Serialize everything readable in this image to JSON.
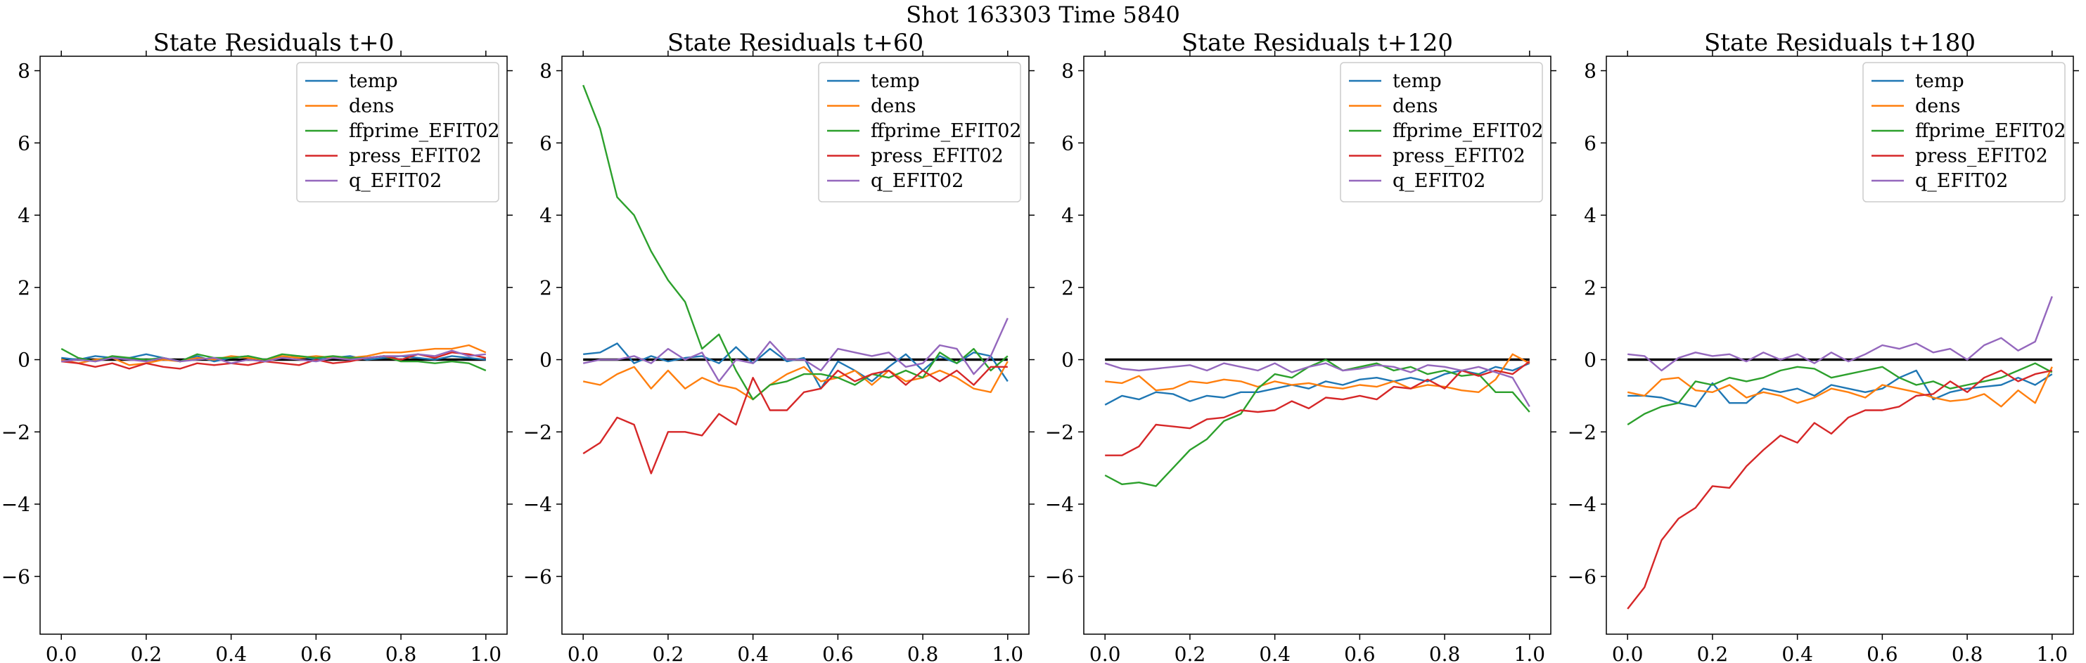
{
  "figure": {
    "suptitle": "Shot 163303   Time 5840"
  },
  "colors": {
    "temp": "#1f77b4",
    "dens": "#ff7f0e",
    "ffprime_EFIT02": "#2ca02c",
    "press_EFIT02": "#d62728",
    "q_EFIT02": "#9467bd",
    "zero_line": "#000000"
  },
  "chart_data": [
    {
      "type": "line",
      "title": "State Residuals t+0",
      "xlabel": "",
      "ylabel": "",
      "xlim": [
        -0.05,
        1.05
      ],
      "ylim": [
        -7.6,
        8.4
      ],
      "xticks": [
        0.0,
        0.2,
        0.4,
        0.6,
        0.8,
        1.0
      ],
      "xtick_labels": [
        "0.0",
        "0.2",
        "0.4",
        "0.6",
        "0.8",
        "1.0"
      ],
      "yticks": [
        -6,
        -4,
        -2,
        0,
        2,
        4,
        6,
        8
      ],
      "ytick_labels": [
        "−6",
        "−4",
        "−2",
        "0",
        "2",
        "4",
        "6",
        "8"
      ],
      "grid": false,
      "legend_position": "top-right",
      "zero_line": 0,
      "x": [
        0.0,
        0.04,
        0.08,
        0.12,
        0.16,
        0.2,
        0.24,
        0.28,
        0.32,
        0.36,
        0.4,
        0.44,
        0.48,
        0.52,
        0.56,
        0.6,
        0.64,
        0.68,
        0.72,
        0.76,
        0.8,
        0.84,
        0.88,
        0.92,
        0.96,
        1.0
      ],
      "series": [
        {
          "name": "temp",
          "values": [
            0.05,
            0.0,
            0.1,
            0.05,
            0.05,
            0.15,
            0.05,
            -0.05,
            0.1,
            -0.05,
            0.05,
            0.1,
            0.0,
            0.05,
            0.1,
            0.0,
            0.05,
            0.1,
            0.0,
            0.05,
            0.1,
            0.05,
            0.0,
            0.1,
            0.05,
            0.0
          ]
        },
        {
          "name": "dens",
          "values": [
            0.0,
            -0.1,
            0.0,
            0.05,
            -0.15,
            -0.1,
            0.0,
            -0.05,
            0.05,
            0.0,
            0.1,
            0.05,
            0.0,
            0.1,
            0.05,
            0.1,
            0.05,
            0.05,
            0.1,
            0.2,
            0.2,
            0.25,
            0.3,
            0.3,
            0.4,
            0.2
          ]
        },
        {
          "name": "ffprime_EFIT02",
          "values": [
            0.3,
            0.05,
            -0.05,
            0.1,
            0.05,
            0.0,
            0.05,
            -0.05,
            0.15,
            0.05,
            0.05,
            0.1,
            0.0,
            0.15,
            0.1,
            0.05,
            0.1,
            0.05,
            0.05,
            0.1,
            -0.05,
            -0.05,
            -0.1,
            -0.05,
            -0.1,
            -0.3
          ]
        },
        {
          "name": "press_EFIT02",
          "values": [
            -0.05,
            -0.1,
            -0.2,
            -0.1,
            -0.25,
            -0.1,
            -0.2,
            -0.25,
            -0.1,
            -0.15,
            -0.1,
            -0.15,
            -0.05,
            -0.1,
            -0.15,
            0.0,
            -0.1,
            -0.05,
            0.05,
            0.1,
            0.0,
            0.15,
            0.05,
            0.2,
            0.15,
            0.05
          ]
        },
        {
          "name": "q_EFIT02",
          "values": [
            -0.05,
            0.0,
            -0.05,
            0.05,
            0.0,
            -0.05,
            0.05,
            -0.05,
            0.0,
            0.05,
            -0.1,
            0.0,
            -0.05,
            0.05,
            0.0,
            -0.05,
            0.05,
            0.0,
            0.05,
            0.1,
            0.1,
            0.15,
            0.1,
            0.25,
            0.1,
            0.15
          ]
        }
      ]
    },
    {
      "type": "line",
      "title": "State Residuals t+60",
      "xlabel": "",
      "ylabel": "",
      "xlim": [
        -0.05,
        1.05
      ],
      "ylim": [
        -7.6,
        8.4
      ],
      "xticks": [
        0.0,
        0.2,
        0.4,
        0.6,
        0.8,
        1.0
      ],
      "xtick_labels": [
        "0.0",
        "0.2",
        "0.4",
        "0.6",
        "0.8",
        "1.0"
      ],
      "yticks": [
        -6,
        -4,
        -2,
        0,
        2,
        4,
        6,
        8
      ],
      "ytick_labels": [
        "−6",
        "−4",
        "−2",
        "0",
        "2",
        "4",
        "6",
        "8"
      ],
      "grid": false,
      "legend_position": "top-right",
      "zero_line": 0,
      "x": [
        0.0,
        0.04,
        0.08,
        0.12,
        0.16,
        0.2,
        0.24,
        0.28,
        0.32,
        0.36,
        0.4,
        0.44,
        0.48,
        0.52,
        0.56,
        0.6,
        0.64,
        0.68,
        0.72,
        0.76,
        0.8,
        0.84,
        0.88,
        0.92,
        0.96,
        1.0
      ],
      "series": [
        {
          "name": "temp",
          "values": [
            0.15,
            0.2,
            0.45,
            -0.1,
            0.1,
            -0.05,
            0.05,
            0.1,
            -0.1,
            0.35,
            -0.1,
            0.3,
            -0.05,
            0.05,
            -0.8,
            -0.05,
            -0.3,
            -0.6,
            -0.2,
            0.15,
            -0.3,
            0.1,
            -0.1,
            0.2,
            0.1,
            -0.6
          ]
        },
        {
          "name": "dens",
          "values": [
            -0.6,
            -0.7,
            -0.4,
            -0.2,
            -0.8,
            -0.3,
            -0.8,
            -0.5,
            -0.7,
            -0.8,
            -1.1,
            -0.7,
            -0.4,
            -0.2,
            -0.6,
            -0.5,
            -0.3,
            -0.7,
            -0.3,
            -0.6,
            -0.5,
            -0.3,
            -0.5,
            -0.8,
            -0.9,
            -0.05
          ]
        },
        {
          "name": "ffprime_EFIT02",
          "values": [
            7.6,
            6.4,
            4.5,
            4.0,
            3.0,
            2.2,
            1.6,
            0.3,
            0.7,
            -0.3,
            -1.1,
            -0.7,
            -0.6,
            -0.4,
            -0.4,
            -0.5,
            -0.7,
            -0.4,
            -0.5,
            -0.3,
            -0.5,
            0.2,
            -0.1,
            0.3,
            -0.3,
            0.1
          ]
        },
        {
          "name": "press_EFIT02",
          "values": [
            -2.6,
            -2.3,
            -1.6,
            -1.8,
            -3.15,
            -2.0,
            -2.0,
            -2.1,
            -1.5,
            -1.8,
            -0.5,
            -1.4,
            -1.4,
            -0.9,
            -0.8,
            -0.3,
            -0.6,
            -0.4,
            -0.3,
            -0.7,
            -0.3,
            -0.6,
            -0.3,
            -0.7,
            -0.2,
            -0.2
          ]
        },
        {
          "name": "q_EFIT02",
          "values": [
            -0.1,
            0.0,
            0.0,
            0.1,
            -0.1,
            0.3,
            0.0,
            0.2,
            -0.6,
            0.0,
            -0.1,
            0.5,
            0.0,
            0.0,
            -0.3,
            0.3,
            0.2,
            0.1,
            0.2,
            -0.2,
            -0.1,
            0.4,
            0.3,
            -0.4,
            0.1,
            1.15
          ]
        }
      ]
    },
    {
      "type": "line",
      "title": "State Residuals t+120",
      "xlabel": "",
      "ylabel": "",
      "xlim": [
        -0.05,
        1.05
      ],
      "ylim": [
        -7.6,
        8.4
      ],
      "xticks": [
        0.0,
        0.2,
        0.4,
        0.6,
        0.8,
        1.0
      ],
      "xtick_labels": [
        "0.0",
        "0.2",
        "0.4",
        "0.6",
        "0.8",
        "1.0"
      ],
      "yticks": [
        -6,
        -4,
        -2,
        0,
        2,
        4,
        6,
        8
      ],
      "ytick_labels": [
        "−6",
        "−4",
        "−2",
        "0",
        "2",
        "4",
        "6",
        "8"
      ],
      "grid": false,
      "legend_position": "top-right",
      "zero_line": 0,
      "x": [
        0.0,
        0.04,
        0.08,
        0.12,
        0.16,
        0.2,
        0.24,
        0.28,
        0.32,
        0.36,
        0.4,
        0.44,
        0.48,
        0.52,
        0.56,
        0.6,
        0.64,
        0.68,
        0.72,
        0.76,
        0.8,
        0.84,
        0.88,
        0.92,
        0.96,
        1.0
      ],
      "series": [
        {
          "name": "temp",
          "values": [
            -1.25,
            -1.0,
            -1.1,
            -0.9,
            -0.95,
            -1.15,
            -1.0,
            -1.05,
            -0.9,
            -0.9,
            -0.8,
            -0.7,
            -0.8,
            -0.6,
            -0.7,
            -0.55,
            -0.5,
            -0.6,
            -0.5,
            -0.6,
            -0.4,
            -0.3,
            -0.4,
            -0.2,
            -0.3,
            -0.1
          ]
        },
        {
          "name": "dens",
          "values": [
            -0.6,
            -0.65,
            -0.45,
            -0.85,
            -0.8,
            -0.6,
            -0.65,
            -0.55,
            -0.6,
            -0.75,
            -0.6,
            -0.7,
            -0.65,
            -0.75,
            -0.8,
            -0.7,
            -0.75,
            -0.6,
            -0.8,
            -0.7,
            -0.75,
            -0.85,
            -0.9,
            -0.55,
            0.15,
            -0.1
          ]
        },
        {
          "name": "ffprime_EFIT02",
          "values": [
            -3.2,
            -3.45,
            -3.4,
            -3.5,
            -3.0,
            -2.5,
            -2.2,
            -1.7,
            -1.5,
            -0.8,
            -0.4,
            -0.5,
            -0.2,
            0.0,
            -0.3,
            -0.2,
            -0.1,
            -0.3,
            -0.2,
            -0.4,
            -0.3,
            -0.45,
            -0.4,
            -0.9,
            -0.9,
            -1.45
          ]
        },
        {
          "name": "press_EFIT02",
          "values": [
            -2.65,
            -2.65,
            -2.4,
            -1.8,
            -1.85,
            -1.9,
            -1.65,
            -1.6,
            -1.4,
            -1.45,
            -1.4,
            -1.15,
            -1.35,
            -1.05,
            -1.1,
            -1.0,
            -1.1,
            -0.75,
            -0.8,
            -0.55,
            -0.8,
            -0.3,
            -0.45,
            -0.3,
            -0.4,
            -0.05
          ]
        },
        {
          "name": "q_EFIT02",
          "values": [
            -0.1,
            -0.25,
            -0.3,
            -0.25,
            -0.2,
            -0.15,
            -0.3,
            -0.1,
            -0.2,
            -0.3,
            -0.1,
            -0.35,
            -0.2,
            -0.1,
            -0.3,
            -0.25,
            -0.15,
            -0.2,
            -0.35,
            -0.15,
            -0.2,
            -0.3,
            -0.2,
            -0.35,
            -0.5,
            -1.3
          ]
        }
      ]
    },
    {
      "type": "line",
      "title": "State Residuals t+180",
      "xlabel": "",
      "ylabel": "",
      "xlim": [
        -0.05,
        1.05
      ],
      "ylim": [
        -7.6,
        8.4
      ],
      "xticks": [
        0.0,
        0.2,
        0.4,
        0.6,
        0.8,
        1.0
      ],
      "xtick_labels": [
        "0.0",
        "0.2",
        "0.4",
        "0.6",
        "0.8",
        "1.0"
      ],
      "yticks": [
        -6,
        -4,
        -2,
        0,
        2,
        4,
        6,
        8
      ],
      "ytick_labels": [
        "−6",
        "−4",
        "−2",
        "0",
        "2",
        "4",
        "6",
        "8"
      ],
      "grid": false,
      "legend_position": "top-right",
      "zero_line": 0,
      "x": [
        0.0,
        0.04,
        0.08,
        0.12,
        0.16,
        0.2,
        0.24,
        0.28,
        0.32,
        0.36,
        0.4,
        0.44,
        0.48,
        0.52,
        0.56,
        0.6,
        0.64,
        0.68,
        0.72,
        0.76,
        0.8,
        0.84,
        0.88,
        0.92,
        0.96,
        1.0
      ],
      "series": [
        {
          "name": "temp",
          "values": [
            -1.0,
            -1.0,
            -1.05,
            -1.2,
            -1.3,
            -0.65,
            -1.2,
            -1.2,
            -0.8,
            -0.9,
            -0.8,
            -1.0,
            -0.7,
            -0.8,
            -0.9,
            -0.8,
            -0.5,
            -0.3,
            -1.1,
            -0.9,
            -0.8,
            -0.75,
            -0.7,
            -0.5,
            -0.7,
            -0.4
          ]
        },
        {
          "name": "dens",
          "values": [
            -0.9,
            -1.0,
            -0.55,
            -0.5,
            -0.85,
            -0.9,
            -0.7,
            -1.05,
            -0.9,
            -1.0,
            -1.2,
            -1.05,
            -0.8,
            -0.9,
            -1.05,
            -0.7,
            -0.8,
            -0.9,
            -1.05,
            -1.15,
            -1.1,
            -0.95,
            -1.3,
            -0.85,
            -1.2,
            -0.2
          ]
        },
        {
          "name": "ffprime_EFIT02",
          "values": [
            -1.8,
            -1.5,
            -1.3,
            -1.2,
            -0.6,
            -0.7,
            -0.5,
            -0.6,
            -0.5,
            -0.3,
            -0.2,
            -0.25,
            -0.5,
            -0.4,
            -0.3,
            -0.2,
            -0.5,
            -0.7,
            -0.6,
            -0.8,
            -0.7,
            -0.6,
            -0.5,
            -0.3,
            -0.1,
            -0.35
          ]
        },
        {
          "name": "press_EFIT02",
          "values": [
            -6.9,
            -6.3,
            -5.0,
            -4.4,
            -4.1,
            -3.5,
            -3.55,
            -2.95,
            -2.5,
            -2.1,
            -2.3,
            -1.75,
            -2.05,
            -1.6,
            -1.4,
            -1.4,
            -1.3,
            -1.0,
            -0.95,
            -0.6,
            -0.9,
            -0.5,
            -0.3,
            -0.6,
            -0.4,
            -0.3
          ]
        },
        {
          "name": "q_EFIT02",
          "values": [
            0.15,
            0.1,
            -0.3,
            0.05,
            0.2,
            0.1,
            0.15,
            -0.05,
            0.2,
            0.0,
            0.15,
            -0.1,
            0.2,
            -0.05,
            0.15,
            0.4,
            0.3,
            0.45,
            0.2,
            0.3,
            0.0,
            0.4,
            0.6,
            0.25,
            0.5,
            1.75
          ]
        }
      ]
    }
  ]
}
